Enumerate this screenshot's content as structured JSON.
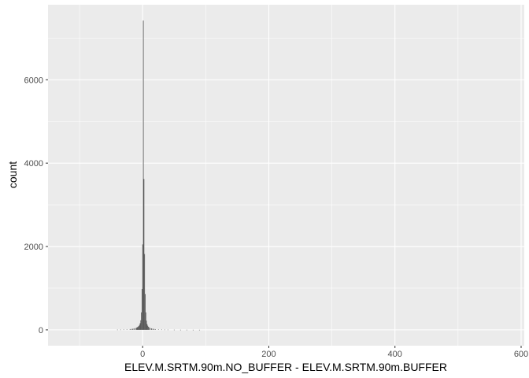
{
  "chart_data": {
    "type": "bar",
    "title": "",
    "xlabel": "ELEV.M.SRTM.90m.NO_BUFFER - ELEV.M.SRTM.90m.BUFFER",
    "ylabel": "count",
    "xlim": [
      -150,
      605
    ],
    "ylim": [
      -380,
      7800
    ],
    "x_ticks": [
      0,
      200,
      400,
      600
    ],
    "y_ticks": [
      0,
      2000,
      4000,
      6000
    ],
    "x_tick_labels": [
      "0",
      "200",
      "400",
      "600"
    ],
    "y_tick_labels": [
      "0",
      "2000",
      "4000",
      "6000"
    ],
    "grid": true,
    "bin_width": 1,
    "bins": [
      {
        "x": -40,
        "count": 5
      },
      {
        "x": -35,
        "count": 6
      },
      {
        "x": -30,
        "count": 8
      },
      {
        "x": -25,
        "count": 12
      },
      {
        "x": -20,
        "count": 18
      },
      {
        "x": -18,
        "count": 22
      },
      {
        "x": -16,
        "count": 26
      },
      {
        "x": -14,
        "count": 32
      },
      {
        "x": -12,
        "count": 40
      },
      {
        "x": -10,
        "count": 50
      },
      {
        "x": -9,
        "count": 58
      },
      {
        "x": -8,
        "count": 68
      },
      {
        "x": -7,
        "count": 80
      },
      {
        "x": -6,
        "count": 95
      },
      {
        "x": -5,
        "count": 120
      },
      {
        "x": -4,
        "count": 160
      },
      {
        "x": -3,
        "count": 230
      },
      {
        "x": -2,
        "count": 420
      },
      {
        "x": -1,
        "count": 980
      },
      {
        "x": 0,
        "count": 2050
      },
      {
        "x": 1,
        "count": 7420
      },
      {
        "x": 2,
        "count": 3620
      },
      {
        "x": 3,
        "count": 1820
      },
      {
        "x": 4,
        "count": 860
      },
      {
        "x": 5,
        "count": 420
      },
      {
        "x": 6,
        "count": 220
      },
      {
        "x": 7,
        "count": 140
      },
      {
        "x": 8,
        "count": 100
      },
      {
        "x": 9,
        "count": 75
      },
      {
        "x": 10,
        "count": 60
      },
      {
        "x": 12,
        "count": 45
      },
      {
        "x": 14,
        "count": 35
      },
      {
        "x": 16,
        "count": 28
      },
      {
        "x": 18,
        "count": 22
      },
      {
        "x": 20,
        "count": 18
      },
      {
        "x": 25,
        "count": 12
      },
      {
        "x": 30,
        "count": 8
      },
      {
        "x": 35,
        "count": 6
      },
      {
        "x": 40,
        "count": 5
      },
      {
        "x": 50,
        "count": 3
      },
      {
        "x": 60,
        "count": 2
      },
      {
        "x": 70,
        "count": 2
      },
      {
        "x": 80,
        "count": 1
      },
      {
        "x": 90,
        "count": 1
      }
    ],
    "colors": {
      "panel_background": "#ebebeb",
      "grid_major": "#ffffff",
      "bar_fill": "#595959",
      "tick_mark": "#333333"
    }
  }
}
